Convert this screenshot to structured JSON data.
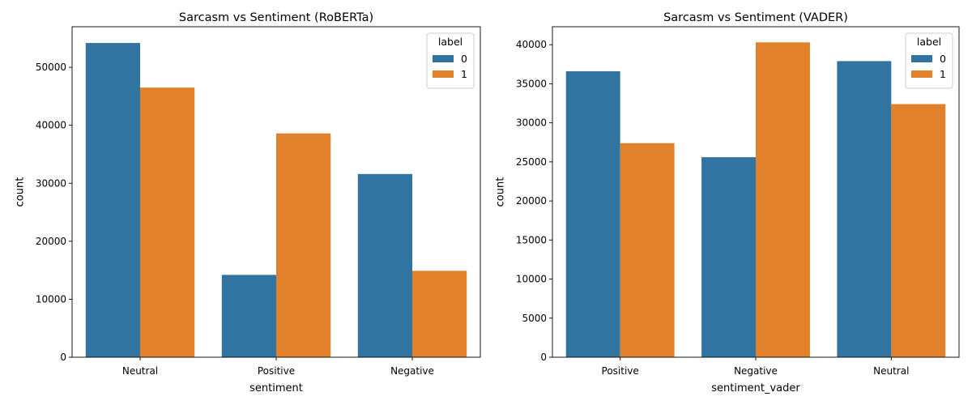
{
  "chart_data": [
    {
      "type": "bar",
      "title": "Sarcasm vs Sentiment (RoBERTa)",
      "xlabel": "sentiment",
      "ylabel": "count",
      "categories": [
        "Neutral",
        "Positive",
        "Negative"
      ],
      "ylim": [
        0,
        57000
      ],
      "yticks": [
        0,
        10000,
        20000,
        30000,
        40000,
        50000
      ],
      "legend": {
        "title": "label",
        "placement": "top-right"
      },
      "series": [
        {
          "name": "0",
          "color": "#3274a1",
          "values": [
            54200,
            14200,
            31600
          ]
        },
        {
          "name": "1",
          "color": "#e1812c",
          "values": [
            46500,
            38600,
            14900
          ]
        }
      ]
    },
    {
      "type": "bar",
      "title": "Sarcasm vs Sentiment (VADER)",
      "xlabel": "sentiment_vader",
      "ylabel": "count",
      "categories": [
        "Positive",
        "Negative",
        "Neutral"
      ],
      "ylim": [
        0,
        42300
      ],
      "yticks": [
        0,
        5000,
        10000,
        15000,
        20000,
        25000,
        30000,
        35000,
        40000
      ],
      "legend": {
        "title": "label",
        "placement": "top-right"
      },
      "series": [
        {
          "name": "0",
          "color": "#3274a1",
          "values": [
            36600,
            25600,
            37900
          ]
        },
        {
          "name": "1",
          "color": "#e1812c",
          "values": [
            27400,
            40300,
            32400
          ]
        }
      ]
    }
  ]
}
